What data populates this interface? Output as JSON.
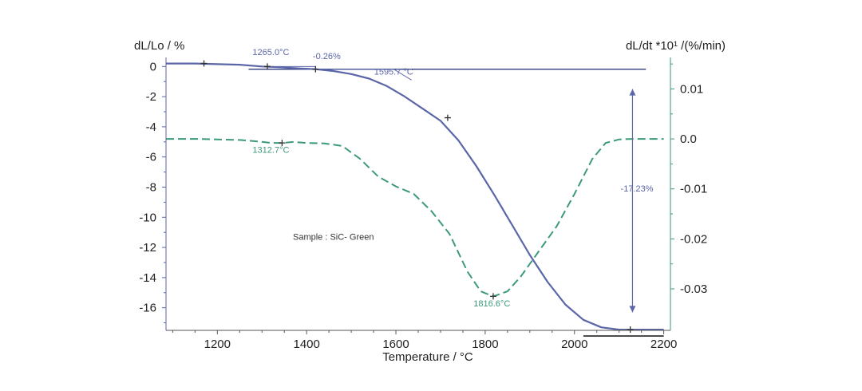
{
  "chart_data": {
    "type": "line",
    "xlabel": "Temperature / °C",
    "ylabel_left": "dL/Lo / %",
    "ylabel_right": "dL/dt *10¹ /(%/min)",
    "xlim": [
      1085,
      2215
    ],
    "ylim_left": [
      -17.5,
      0.6
    ],
    "ylim_right": [
      -0.0383,
      0.0163
    ],
    "x_ticks": [
      "1200",
      "1400",
      "1600",
      "1800",
      "2000",
      "2200"
    ],
    "x_tick_values": [
      1200,
      1400,
      1600,
      1800,
      2000,
      2200
    ],
    "y_left_ticks": [
      "0",
      "-2",
      "-4",
      "-6",
      "-8",
      "-10",
      "-12",
      "-14",
      "-16"
    ],
    "y_left_tick_values": [
      0,
      -2,
      -4,
      -6,
      -8,
      -10,
      -12,
      -14,
      -16
    ],
    "y_right_ticks": [
      "0.01",
      "0.0",
      "-0.01",
      "-0.02",
      "-0.03"
    ],
    "y_right_tick_values": [
      0.01,
      0.0,
      -0.01,
      -0.02,
      -0.03
    ],
    "colors": {
      "dl_lo": "#5a66a8",
      "dl_dt": "#3d9a78",
      "reference_line": "#3d4a86",
      "left_axis": "#5a66a8",
      "right_axis": "#3d9a78"
    },
    "series": [
      {
        "axis": "left",
        "style": "solid",
        "x": [
          1085,
          1150,
          1250,
          1300,
          1340,
          1380,
          1420,
          1460,
          1500,
          1540,
          1580,
          1620,
          1660,
          1700,
          1740,
          1780,
          1820,
          1860,
          1900,
          1940,
          1980,
          2020,
          2060,
          2100,
          2130,
          2200
        ],
        "y": [
          0.2,
          0.2,
          0.12,
          0.0,
          -0.05,
          -0.12,
          -0.18,
          -0.3,
          -0.5,
          -0.8,
          -1.3,
          -2.0,
          -2.8,
          -3.6,
          -4.9,
          -6.6,
          -8.5,
          -10.5,
          -12.5,
          -14.3,
          -15.8,
          -16.8,
          -17.3,
          -17.45,
          -17.45,
          -17.45
        ]
      },
      {
        "axis": "right",
        "style": "dashed",
        "x": [
          1085,
          1150,
          1200,
          1250,
          1290,
          1320,
          1345,
          1370,
          1400,
          1440,
          1480,
          1520,
          1560,
          1600,
          1640,
          1680,
          1720,
          1760,
          1790,
          1818,
          1850,
          1880,
          1920,
          1960,
          2000,
          2040,
          2070,
          2100,
          2130,
          2160,
          2200
        ],
        "y": [
          0.0,
          0.0,
          -0.0001,
          -0.0002,
          -0.0005,
          -0.0008,
          -0.0008,
          -0.0006,
          -0.0008,
          -0.0009,
          -0.0014,
          -0.004,
          -0.0075,
          -0.0095,
          -0.011,
          -0.0145,
          -0.019,
          -0.0265,
          -0.0305,
          -0.0315,
          -0.0305,
          -0.0275,
          -0.0225,
          -0.0175,
          -0.011,
          -0.004,
          -0.0008,
          -0.0001,
          0.0,
          0.0,
          0.0
        ]
      }
    ],
    "markers": [
      {
        "axis": "left",
        "x": 1170,
        "y": 0.2
      },
      {
        "axis": "left",
        "x": 1312,
        "y": 0.0
      },
      {
        "axis": "left",
        "x": 1420,
        "y": -0.18
      },
      {
        "axis": "left",
        "x": 1716,
        "y": -3.4
      },
      {
        "axis": "left",
        "x": 2125,
        "y": -17.45
      },
      {
        "axis": "right",
        "x": 1345,
        "y": -0.0008
      },
      {
        "axis": "right",
        "x": 1818,
        "y": -0.0315
      }
    ],
    "reference_lines": [
      {
        "axis": "left",
        "x1": 1270,
        "x2": 2160,
        "y": -0.18
      }
    ],
    "step_annotation": {
      "axis": "left",
      "x1": 1300,
      "x2": 1420,
      "y_from": 0.0,
      "y_to": -0.18
    },
    "bracket_line": {
      "axis": "left",
      "x1": 1420,
      "x2": 1595,
      "y": -0.18,
      "x_end": 1635,
      "y_end": -0.9
    },
    "bottom_segment": {
      "axis": "left",
      "x1": 2020,
      "x2": 2200,
      "y": -17.45
    },
    "dimension_arrow": {
      "axis": "left",
      "x": 2130,
      "y_top": -1.5,
      "y_bottom": -16.3
    },
    "annotations": [
      {
        "text": "1265.0°C",
        "x": 1320,
        "y": 0.75,
        "axis": "left",
        "color": "dl_lo"
      },
      {
        "text": "-0.26%",
        "x": 1445,
        "y": 0.5,
        "axis": "left",
        "color": "dl_lo"
      },
      {
        "text": "1595.7 °C",
        "x": 1595,
        "y": -0.55,
        "axis": "left",
        "color": "dl_lo"
      },
      {
        "text": "-17.23%",
        "x": 2140,
        "y": -8.3,
        "axis": "left",
        "color": "dl_lo"
      },
      {
        "text": "1312.7°C",
        "x": 1320,
        "y": -0.0028,
        "axis": "right",
        "color": "dl_dt"
      },
      {
        "text": "1816.6°C",
        "x": 1815,
        "y": -0.0335,
        "axis": "right",
        "color": "dl_dt"
      },
      {
        "text": "Sample : SiC- Green",
        "x": 1460,
        "y": -11.5,
        "axis": "left",
        "color": "dark"
      }
    ]
  }
}
